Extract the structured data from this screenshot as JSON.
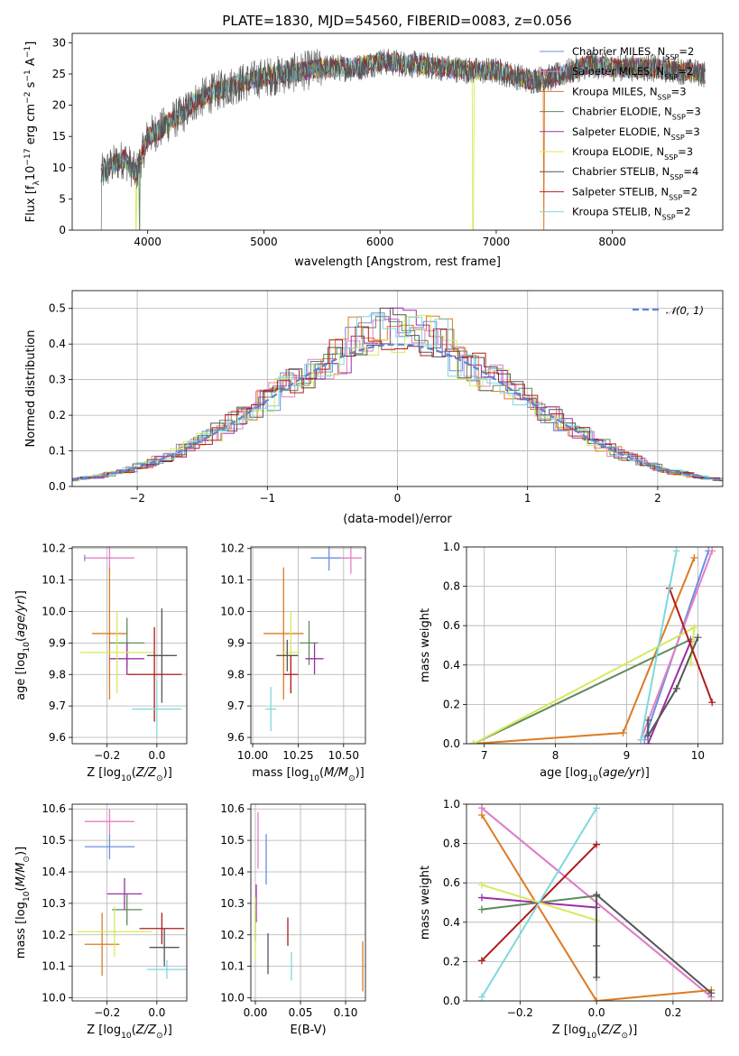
{
  "page": {
    "title": "PLATE=1830, MJD=54560, FIBERID=0083, z=0.056"
  },
  "colors": {
    "Chabrier MILES": "#6b8fe0",
    "Salpeter MILES": "#e57fc6",
    "Kroupa MILES": "#dd7a22",
    "Chabrier ELODIE": "#5e8a5e",
    "Salpeter ELODIE": "#9b30a8",
    "Kroupa ELODIE": "#d6ea5e",
    "Chabrier STELIB": "#555555",
    "Salpeter STELIB": "#b01c1c",
    "Kroupa STELIB": "#7fd8dc"
  },
  "chart_data": [
    {
      "id": "spectrum",
      "type": "line",
      "title": "PLATE=1830, MJD=54560, FIBERID=0083, z=0.056",
      "xlabel": "wavelength [Angstrom, rest frame]",
      "ylabel": "Flux [fλ10⁻¹⁷ erg cm⁻² s⁻¹ A⁻¹]",
      "xlim": [
        3350,
        8950
      ],
      "ylim": [
        0,
        31.5
      ],
      "xticks": [
        4000,
        5000,
        6000,
        7000,
        8000
      ],
      "yticks": [
        0,
        5,
        10,
        15,
        20,
        25,
        30
      ],
      "legend_position": "right",
      "legend": [
        {
          "name": "Chabrier MILES, N",
          "sub": "SSP",
          "suffix": "=2",
          "color": "#6b8fe0"
        },
        {
          "name": "Salpeter MILES, N",
          "sub": "SSP",
          "suffix": "=2",
          "color": "#e57fc6"
        },
        {
          "name": "Kroupa MILES, N",
          "sub": "SSP",
          "suffix": "=3",
          "color": "#dd7a22"
        },
        {
          "name": "Chabrier ELODIE, N",
          "sub": "SSP",
          "suffix": "=3",
          "color": "#5e8a5e"
        },
        {
          "name": "Salpeter ELODIE, N",
          "sub": "SSP",
          "suffix": "=3",
          "color": "#9b30a8"
        },
        {
          "name": "Kroupa ELODIE, N",
          "sub": "SSP",
          "suffix": "=3",
          "color": "#d6ea5e"
        },
        {
          "name": "Chabrier STELIB, N",
          "sub": "SSP",
          "suffix": "=4",
          "color": "#555555"
        },
        {
          "name": "Salpeter STELIB, N",
          "sub": "SSP",
          "suffix": "=2",
          "color": "#b01c1c"
        },
        {
          "name": "Kroupa STELIB, N",
          "sub": "SSP",
          "suffix": "=2",
          "color": "#7fd8dc"
        }
      ],
      "continuum": [
        [
          3600,
          9
        ],
        [
          3700,
          10.5
        ],
        [
          3800,
          11.5
        ],
        [
          3900,
          9
        ],
        [
          3950,
          12
        ],
        [
          4000,
          15
        ],
        [
          4100,
          16
        ],
        [
          4200,
          17.5
        ],
        [
          4300,
          18.5
        ],
        [
          4400,
          20.5
        ],
        [
          4500,
          21.5
        ],
        [
          4700,
          23
        ],
        [
          5000,
          24.5
        ],
        [
          5200,
          25
        ],
        [
          5500,
          26
        ],
        [
          5800,
          26
        ],
        [
          6000,
          27
        ],
        [
          6300,
          26.5
        ],
        [
          6560,
          26
        ],
        [
          6800,
          25.5
        ],
        [
          7000,
          25.5
        ],
        [
          7200,
          24.5
        ],
        [
          7300,
          24
        ],
        [
          7500,
          24.5
        ],
        [
          7800,
          26.5
        ],
        [
          8000,
          26
        ],
        [
          8300,
          26
        ],
        [
          8600,
          25.5
        ],
        [
          8800,
          25
        ]
      ]
    },
    {
      "id": "residuals",
      "type": "histogram",
      "xlabel": "(data-model)/error",
      "ylabel": "Normed distribution",
      "xlim": [
        -2.5,
        2.5
      ],
      "ylim": [
        0,
        0.55
      ],
      "xticks": [
        -2,
        -1,
        0,
        1,
        2
      ],
      "yticks": [
        0.0,
        0.1,
        0.2,
        0.3,
        0.4,
        0.5
      ],
      "legend": "𝒩(0, 1)",
      "legend_position": "top-right",
      "bin_width": 0.1
    },
    {
      "id": "age-vs-Z",
      "type": "errorbar",
      "xlabel": "Z [log₁₀(Z/Z⊙)]",
      "ylabel": "age  [log₁₀(age/yr)]",
      "xlim": [
        -0.34,
        0.12
      ],
      "ylim": [
        9.58,
        10.205
      ],
      "xticks": [
        -0.2,
        0.0
      ],
      "yticks": [
        9.6,
        9.7,
        9.8,
        9.9,
        10.0,
        10.1,
        10.2
      ],
      "points": [
        {
          "x": -0.29,
          "y": 10.17,
          "xerr": 0.0,
          "yerr": 0.01,
          "color": "#6b8fe0"
        },
        {
          "x": -0.19,
          "y": 10.17,
          "xerr": 0.1,
          "yerr": 0.04,
          "color": "#e57fc6"
        },
        {
          "x": -0.19,
          "y": 9.93,
          "xerr": 0.07,
          "yerr": 0.21,
          "color": "#dd7a22"
        },
        {
          "x": -0.12,
          "y": 9.9,
          "xerr": 0.07,
          "yerr": 0.08,
          "color": "#5e8a5e"
        },
        {
          "x": -0.12,
          "y": 9.85,
          "xerr": 0.07,
          "yerr": 0.05,
          "color": "#9b30a8"
        },
        {
          "x": -0.16,
          "y": 9.87,
          "xerr": 0.15,
          "yerr": 0.13,
          "color": "#d6ea5e"
        },
        {
          "x": 0.02,
          "y": 9.86,
          "xerr": 0.06,
          "yerr": 0.15,
          "color": "#555555"
        },
        {
          "x": -0.01,
          "y": 9.8,
          "xerr": 0.11,
          "yerr": 0.15,
          "color": "#b01c1c"
        },
        {
          "x": 0.0,
          "y": 9.69,
          "xerr": 0.1,
          "yerr": 0.09,
          "color": "#7fd8dc"
        }
      ]
    },
    {
      "id": "age-vs-mass",
      "type": "errorbar",
      "xlabel": "mass [log₁₀(M/M⊙)]",
      "xlim": [
        9.99,
        10.62
      ],
      "ylim": [
        9.58,
        10.205
      ],
      "xticks": [
        10.0,
        10.25,
        10.5
      ],
      "yticks": [
        9.6,
        9.7,
        9.8,
        9.9,
        10.0,
        10.1,
        10.2
      ],
      "points": [
        {
          "x": 10.42,
          "y": 10.17,
          "xerr": 0.1,
          "yerr": 0.04,
          "color": "#6b8fe0"
        },
        {
          "x": 10.54,
          "y": 10.17,
          "xerr": 0.06,
          "yerr": 0.05,
          "color": "#e57fc6"
        },
        {
          "x": 10.17,
          "y": 9.93,
          "xerr": 0.11,
          "yerr": 0.21,
          "color": "#dd7a22"
        },
        {
          "x": 10.31,
          "y": 9.9,
          "xerr": 0.05,
          "yerr": 0.07,
          "color": "#5e8a5e"
        },
        {
          "x": 10.34,
          "y": 9.85,
          "xerr": 0.05,
          "yerr": 0.05,
          "color": "#9b30a8"
        },
        {
          "x": 10.21,
          "y": 9.87,
          "xerr": 0.05,
          "yerr": 0.13,
          "color": "#d6ea5e"
        },
        {
          "x": 10.19,
          "y": 9.86,
          "xerr": 0.06,
          "yerr": 0.05,
          "color": "#555555"
        },
        {
          "x": 10.21,
          "y": 9.8,
          "xerr": 0.04,
          "yerr": 0.06,
          "color": "#b01c1c"
        },
        {
          "x": 10.1,
          "y": 9.69,
          "xerr": 0.03,
          "yerr": 0.07,
          "color": "#7fd8dc"
        }
      ]
    },
    {
      "id": "weight-vs-age",
      "type": "line",
      "xlabel": "age  [log₁₀(age/yr)]",
      "ylabel": "mass weight",
      "xlim": [
        6.75,
        10.35
      ],
      "ylim": [
        0,
        1
      ],
      "xticks": [
        7,
        8,
        9,
        10
      ],
      "yticks": [
        0.0,
        0.2,
        0.4,
        0.6,
        0.8,
        1.0
      ],
      "series": [
        {
          "color": "#6b8fe0",
          "x": [
            9.25,
            10.15
          ],
          "y": [
            0.02,
            0.98
          ]
        },
        {
          "color": "#e57fc6",
          "x": [
            9.2,
            10.2
          ],
          "y": [
            0.02,
            0.98
          ]
        },
        {
          "color": "#dd7a22",
          "x": [
            6.85,
            8.95,
            9.95
          ],
          "y": [
            0.0,
            0.055,
            0.945
          ]
        },
        {
          "color": "#5e8a5e",
          "x": [
            6.85,
            9.9
          ],
          "y": [
            0.0,
            0.53
          ]
        },
        {
          "color": "#9b30a8",
          "x": [
            9.3,
            9.9
          ],
          "y": [
            0.0,
            0.52
          ]
        },
        {
          "color": "#d6ea5e",
          "x": [
            6.85,
            9.95,
            9.9
          ],
          "y": [
            0.0,
            0.59,
            0.41
          ]
        },
        {
          "color": "#555555",
          "x": [
            9.3,
            9.3,
            9.7,
            10.0
          ],
          "y": [
            0.12,
            0.04,
            0.28,
            0.54
          ]
        },
        {
          "color": "#b01c1c",
          "x": [
            9.6,
            10.2
          ],
          "y": [
            0.79,
            0.21
          ]
        },
        {
          "color": "#7fd8dc",
          "x": [
            9.2,
            9.7
          ],
          "y": [
            0.02,
            0.98
          ]
        }
      ]
    },
    {
      "id": "mass-vs-Z",
      "type": "errorbar",
      "xlabel": "Z [log₁₀(Z/Z⊙)]",
      "ylabel": "mass [log₁₀(M/M⊙)]",
      "xlim": [
        -0.34,
        0.12
      ],
      "ylim": [
        9.99,
        10.615
      ],
      "xticks": [
        -0.2,
        0.0
      ],
      "yticks": [
        10.0,
        10.1,
        10.2,
        10.3,
        10.4,
        10.5,
        10.6
      ],
      "points": [
        {
          "x": -0.19,
          "y": 10.48,
          "xerr": 0.1,
          "yerr": 0.04,
          "color": "#6b8fe0"
        },
        {
          "x": -0.19,
          "y": 10.56,
          "xerr": 0.1,
          "yerr": 0.04,
          "color": "#e57fc6"
        },
        {
          "x": -0.22,
          "y": 10.17,
          "xerr": 0.07,
          "yerr": 0.1,
          "color": "#dd7a22"
        },
        {
          "x": -0.12,
          "y": 10.28,
          "xerr": 0.06,
          "yerr": 0.05,
          "color": "#5e8a5e"
        },
        {
          "x": -0.13,
          "y": 10.33,
          "xerr": 0.07,
          "yerr": 0.05,
          "color": "#9b30a8"
        },
        {
          "x": -0.17,
          "y": 10.21,
          "xerr": 0.15,
          "yerr": 0.08,
          "color": "#d6ea5e"
        },
        {
          "x": 0.03,
          "y": 10.16,
          "xerr": 0.06,
          "yerr": 0.06,
          "color": "#555555"
        },
        {
          "x": 0.02,
          "y": 10.22,
          "xerr": 0.09,
          "yerr": 0.05,
          "color": "#b01c1c"
        },
        {
          "x": 0.04,
          "y": 10.09,
          "xerr": 0.08,
          "yerr": 0.03,
          "color": "#7fd8dc"
        }
      ]
    },
    {
      "id": "mass-vs-ebv",
      "type": "errorbar",
      "xlabel": "E(B-V)",
      "xlim": [
        -0.005,
        0.122
      ],
      "ylim": [
        9.99,
        10.615
      ],
      "xticks": [
        0.0,
        0.05,
        0.1
      ],
      "yticks": [
        10.0,
        10.1,
        10.2,
        10.3,
        10.4,
        10.5,
        10.6
      ],
      "points": [
        {
          "x": 0.012,
          "y": 10.44,
          "xerr": 0.0,
          "yerr": 0.08,
          "color": "#6b8fe0"
        },
        {
          "x": 0.003,
          "y": 10.5,
          "xerr": 0.0,
          "yerr": 0.09,
          "color": "#e57fc6"
        },
        {
          "x": 0.119,
          "y": 10.1,
          "xerr": 0.0,
          "yerr": 0.08,
          "color": "#dd7a22"
        },
        {
          "x": 0.0,
          "y": 10.24,
          "xerr": 0.0,
          "yerr": 0.06,
          "color": "#5e8a5e"
        },
        {
          "x": 0.001,
          "y": 10.3,
          "xerr": 0.0,
          "yerr": 0.06,
          "color": "#9b30a8"
        },
        {
          "x": 0.0,
          "y": 10.22,
          "xerr": 0.0,
          "yerr": 0.1,
          "color": "#d6ea5e"
        },
        {
          "x": 0.014,
          "y": 10.14,
          "xerr": 0.0,
          "yerr": 0.065,
          "color": "#555555"
        },
        {
          "x": 0.036,
          "y": 10.21,
          "xerr": 0.0,
          "yerr": 0.045,
          "color": "#b01c1c"
        },
        {
          "x": 0.04,
          "y": 10.1,
          "xerr": 0.0,
          "yerr": 0.045,
          "color": "#7fd8dc"
        }
      ]
    },
    {
      "id": "weight-vs-Z",
      "type": "line",
      "xlabel": "Z [log₁₀(Z/Z⊙)]",
      "ylabel": "mass weight",
      "xlim": [
        -0.34,
        0.33
      ],
      "ylim": [
        0,
        1
      ],
      "xticks": [
        -0.2,
        0.0,
        0.2
      ],
      "yticks": [
        0.0,
        0.2,
        0.4,
        0.6,
        0.8,
        1.0
      ],
      "series": [
        {
          "color": "#6b8fe0",
          "x": [
            -0.3,
            0.3
          ],
          "y": [
            0.98,
            0.02
          ]
        },
        {
          "color": "#e57fc6",
          "x": [
            -0.3,
            0.3
          ],
          "y": [
            0.98,
            0.02
          ]
        },
        {
          "color": "#dd7a22",
          "x": [
            -0.3,
            0.0,
            0.3
          ],
          "y": [
            0.945,
            0.0,
            0.055
          ]
        },
        {
          "color": "#5e8a5e",
          "x": [
            -0.3,
            0.0
          ],
          "y": [
            0.465,
            0.535
          ]
        },
        {
          "color": "#9b30a8",
          "x": [
            -0.3,
            0.0
          ],
          "y": [
            0.525,
            0.475
          ]
        },
        {
          "color": "#d6ea5e",
          "x": [
            -0.3,
            0.0
          ],
          "y": [
            0.59,
            0.41
          ]
        },
        {
          "color": "#555555",
          "x": [
            0.0,
            0.0,
            0.0,
            0.3
          ],
          "y": [
            0.12,
            0.28,
            0.54,
            0.04
          ]
        },
        {
          "color": "#b01c1c",
          "x": [
            -0.3,
            0.0
          ],
          "y": [
            0.205,
            0.795
          ]
        },
        {
          "color": "#7fd8dc",
          "x": [
            -0.3,
            0.0
          ],
          "y": [
            0.02,
            0.98
          ]
        }
      ]
    }
  ]
}
